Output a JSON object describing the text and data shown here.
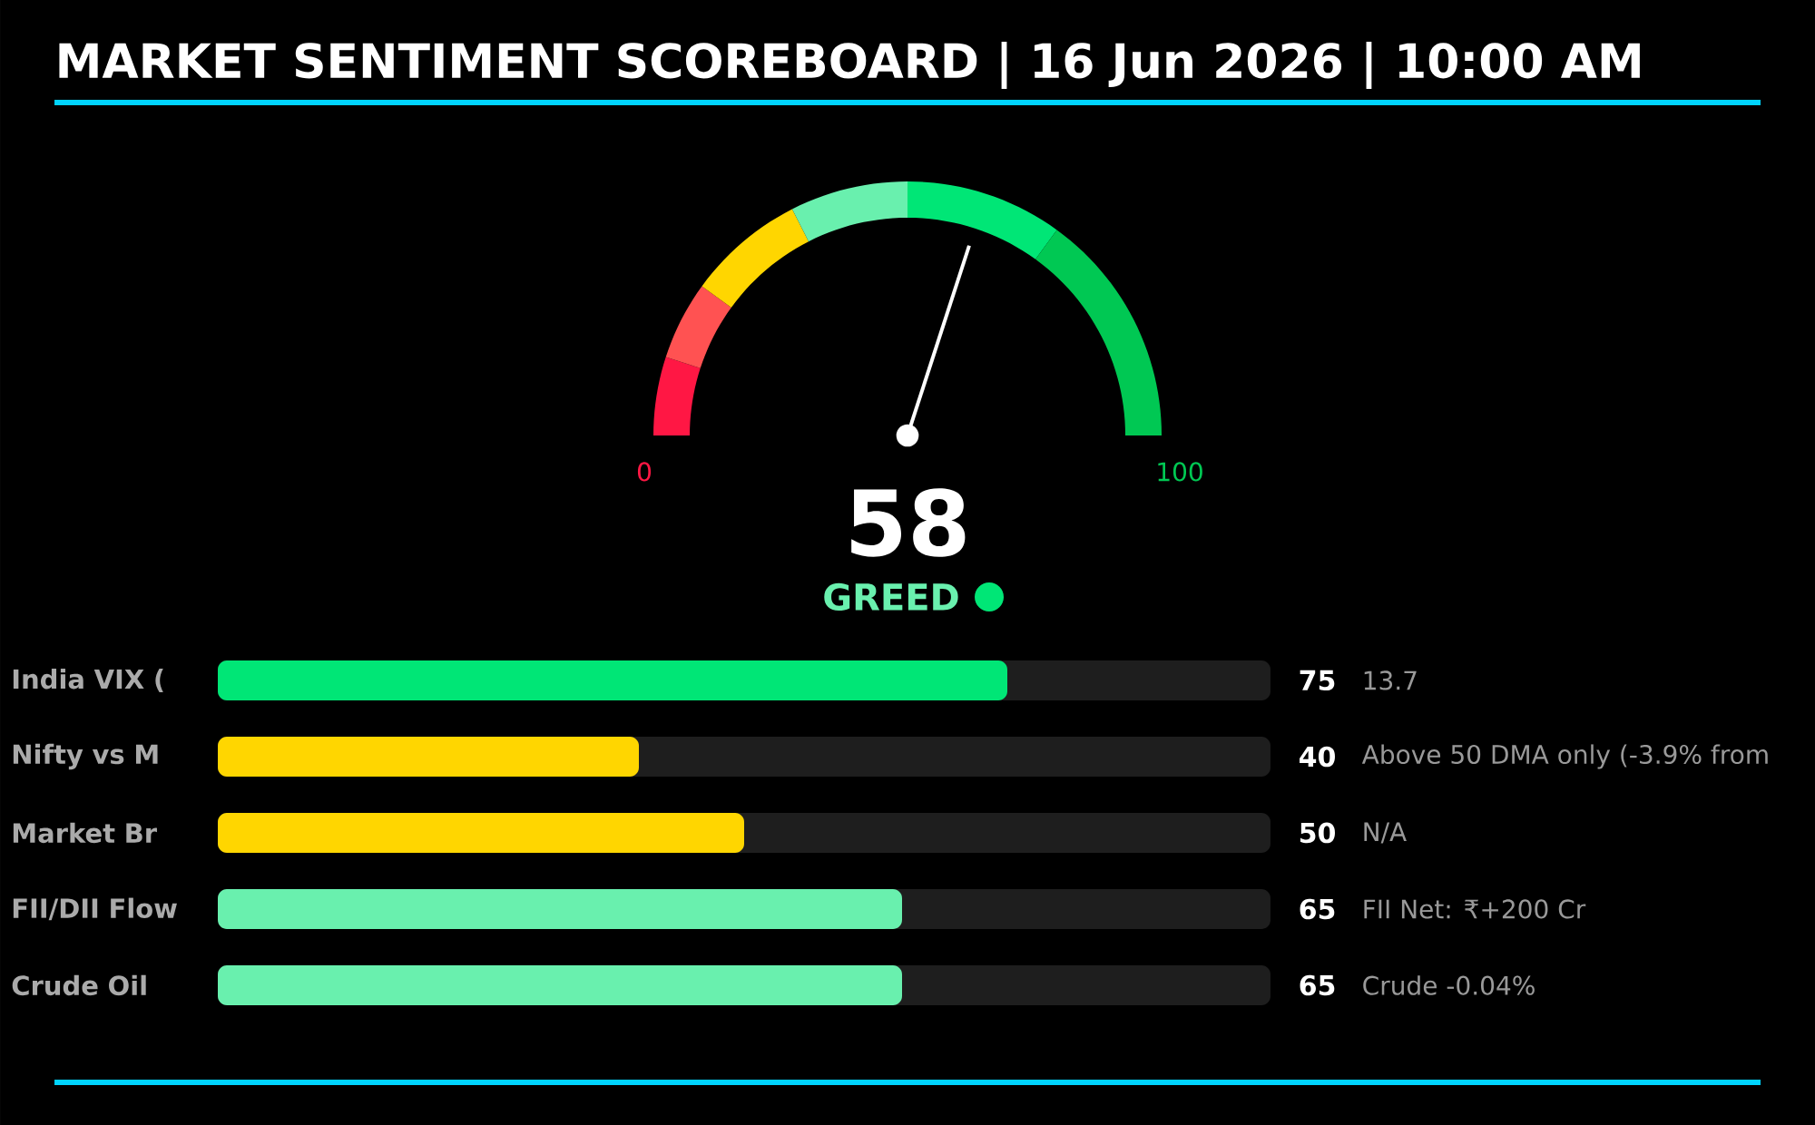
{
  "chart_data": [
    {
      "type": "donut",
      "title": "MARKET SENTIMENT SCOREBOARD | 16 Jun 2026 | 10:00 AM",
      "categories": [
        null,
        null,
        null,
        null,
        "GREED",
        null
      ],
      "values": [
        10,
        10,
        15,
        15,
        20,
        30
      ],
      "colors": [
        "#ff1744",
        "#ff5252",
        "#ffd600",
        "#69f0ae",
        "#00e676",
        "#00c853"
      ],
      "needle": "GREED",
      "annotations": [
        "0",
        "100",
        "58"
      ]
    },
    {
      "type": "bar",
      "orientation": "horizontal",
      "categories": [
        "India VIX (",
        "Nifty vs M",
        "Market Br",
        "FII/DII Flow",
        "Crude Oil"
      ],
      "values": [
        75,
        40,
        50,
        65,
        65
      ],
      "colors": [
        "#00e676",
        "#ffd600",
        "#ffd600",
        "#69f0ae",
        "#69f0ae"
      ],
      "xlim": [
        0,
        100
      ],
      "tick_labels": "y",
      "data_labels": true,
      "annotations": [
        "13.7",
        "Above 50 DMA only (-3.9% from",
        "N/A",
        "FII Net: ₹+200 Cr",
        "Crude -0.04%"
      ]
    }
  ]
}
